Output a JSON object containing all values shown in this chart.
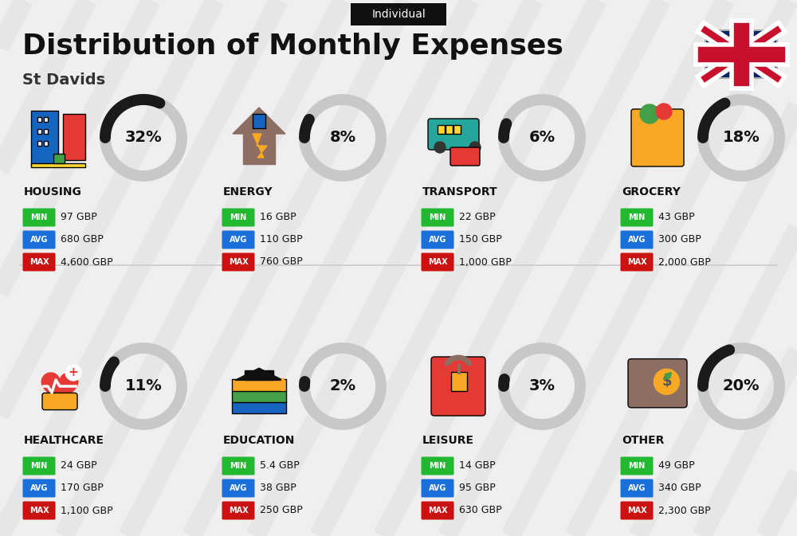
{
  "title": "Distribution of Monthly Expenses",
  "subtitle": "St Davids",
  "badge": "Individual",
  "bg_color": "#efefef",
  "categories": [
    {
      "name": "HOUSING",
      "pct": 32,
      "min": "97 GBP",
      "avg": "680 GBP",
      "max": "4,600 GBP",
      "row": 0,
      "col": 0
    },
    {
      "name": "ENERGY",
      "pct": 8,
      "min": "16 GBP",
      "avg": "110 GBP",
      "max": "760 GBP",
      "row": 0,
      "col": 1
    },
    {
      "name": "TRANSPORT",
      "pct": 6,
      "min": "22 GBP",
      "avg": "150 GBP",
      "max": "1,000 GBP",
      "row": 0,
      "col": 2
    },
    {
      "name": "GROCERY",
      "pct": 18,
      "min": "43 GBP",
      "avg": "300 GBP",
      "max": "2,000 GBP",
      "row": 0,
      "col": 3
    },
    {
      "name": "HEALTHCARE",
      "pct": 11,
      "min": "24 GBP",
      "avg": "170 GBP",
      "max": "1,100 GBP",
      "row": 1,
      "col": 0
    },
    {
      "name": "EDUCATION",
      "pct": 2,
      "min": "5.4 GBP",
      "avg": "38 GBP",
      "max": "250 GBP",
      "row": 1,
      "col": 1
    },
    {
      "name": "LEISURE",
      "pct": 3,
      "min": "14 GBP",
      "avg": "95 GBP",
      "max": "630 GBP",
      "row": 1,
      "col": 2
    },
    {
      "name": "OTHER",
      "pct": 20,
      "min": "49 GBP",
      "avg": "340 GBP",
      "max": "2,300 GBP",
      "row": 1,
      "col": 3
    }
  ],
  "color_min": "#22b830",
  "color_avg": "#1a6fdb",
  "color_max": "#cc1111",
  "arc_color": "#1a1a1a",
  "arc_bg_color": "#c8c8c8",
  "stripe_color": "#e0e0e0",
  "divider_color": "#cccccc",
  "text_dark": "#111111",
  "text_white": "#ffffff",
  "badge_bg": "#111111"
}
